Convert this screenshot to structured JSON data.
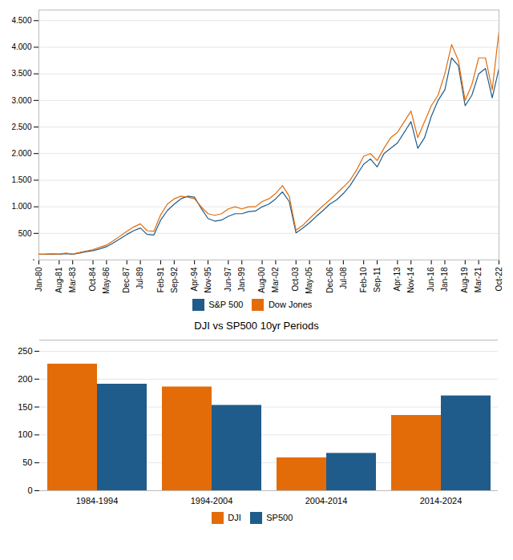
{
  "chart_data": [
    {
      "type": "line",
      "categories": [
        "Jan-80",
        null,
        null,
        "Aug-81",
        null,
        "Mar-83",
        null,
        null,
        "Oct-84",
        null,
        "May-86",
        null,
        null,
        "Dec-87",
        null,
        "Jul-89",
        null,
        null,
        "Feb-91",
        null,
        "Sep-92",
        null,
        null,
        "Apr-94",
        null,
        "Nov-95",
        null,
        null,
        "Jun-97",
        null,
        "Jan-99",
        null,
        null,
        "Aug-00",
        null,
        "Mar-02",
        null,
        null,
        "Oct-03",
        null,
        "May-05",
        null,
        null,
        "Dec-06",
        null,
        "Jul-08",
        null,
        null,
        "Feb-10",
        null,
        "Sep-11",
        null,
        null,
        "Apr-13",
        null,
        "Nov-14",
        null,
        null,
        "Jun-16",
        null,
        "Jan-18",
        null,
        null,
        "Aug-19",
        null,
        "Mar-21",
        null,
        null,
        "Oct-22"
      ],
      "series": [
        {
          "name": "S&P 500",
          "color": "#1f5c8b",
          "values": [
            107,
            108,
            112,
            108,
            120,
            108,
            130,
            155,
            175,
            210,
            250,
            320,
            400,
            480,
            550,
            600,
            480,
            470,
            750,
            930,
            1050,
            1150,
            1200,
            1180,
            970,
            780,
            730,
            750,
            820,
            870,
            870,
            910,
            920,
            1000,
            1050,
            1150,
            1280,
            1100,
            510,
            600,
            700,
            820,
            930,
            1050,
            1130,
            1250,
            1400,
            1600,
            1800,
            1900,
            1750,
            2000,
            2100,
            2200,
            2400,
            2600,
            2100,
            2300,
            2700,
            3000,
            3200,
            3800,
            3650,
            2900,
            3100,
            3500,
            3600,
            3050,
            3600
          ]
        },
        {
          "name": "Dow Jones",
          "color": "#e36c09",
          "values": [
            108,
            110,
            115,
            110,
            130,
            110,
            140,
            170,
            195,
            240,
            280,
            360,
            450,
            540,
            620,
            680,
            550,
            540,
            850,
            1050,
            1150,
            1200,
            1180,
            1150,
            1000,
            870,
            840,
            870,
            960,
            1000,
            960,
            1000,
            1000,
            1100,
            1150,
            1250,
            1400,
            1200,
            560,
            650,
            780,
            900,
            1020,
            1130,
            1250,
            1370,
            1500,
            1700,
            1950,
            2000,
            1870,
            2100,
            2300,
            2400,
            2600,
            2800,
            2300,
            2600,
            2900,
            3100,
            3500,
            4050,
            3750,
            3000,
            3300,
            3800,
            3800,
            3200,
            4300
          ]
        }
      ],
      "ylim": [
        0,
        4700
      ],
      "yticks": [
        500,
        {
          "value": 1000,
          "label": "1.000"
        },
        {
          "value": 1500,
          "label": "1.500"
        },
        {
          "value": 2000,
          "label": "2.000"
        },
        {
          "value": 2500,
          "label": "2.500"
        },
        {
          "value": 3000,
          "label": "3.000"
        },
        {
          "value": 3500,
          "label": "3.500"
        },
        {
          "value": 4000,
          "label": "4.000"
        },
        {
          "value": 4500,
          "label": "4.500"
        }
      ],
      "grid": true,
      "legend": "bottom",
      "annotations": [
        "."
      ]
    },
    {
      "type": "bar",
      "title": "DJI vs SP500 10yr Periods",
      "categories": [
        "1984-1994",
        "1994-2004",
        "2004-2014",
        "2014-2024"
      ],
      "series": [
        {
          "name": "DJI",
          "color": "#e36c09",
          "values": [
            227,
            186,
            59,
            135
          ]
        },
        {
          "name": "SP500",
          "color": "#1f5c8b",
          "values": [
            191,
            153,
            67,
            170
          ]
        }
      ],
      "ylim": [
        0,
        270
      ],
      "yticks": [
        0,
        50,
        100,
        150,
        200,
        250
      ],
      "grid": true,
      "legend": "bottom"
    }
  ]
}
